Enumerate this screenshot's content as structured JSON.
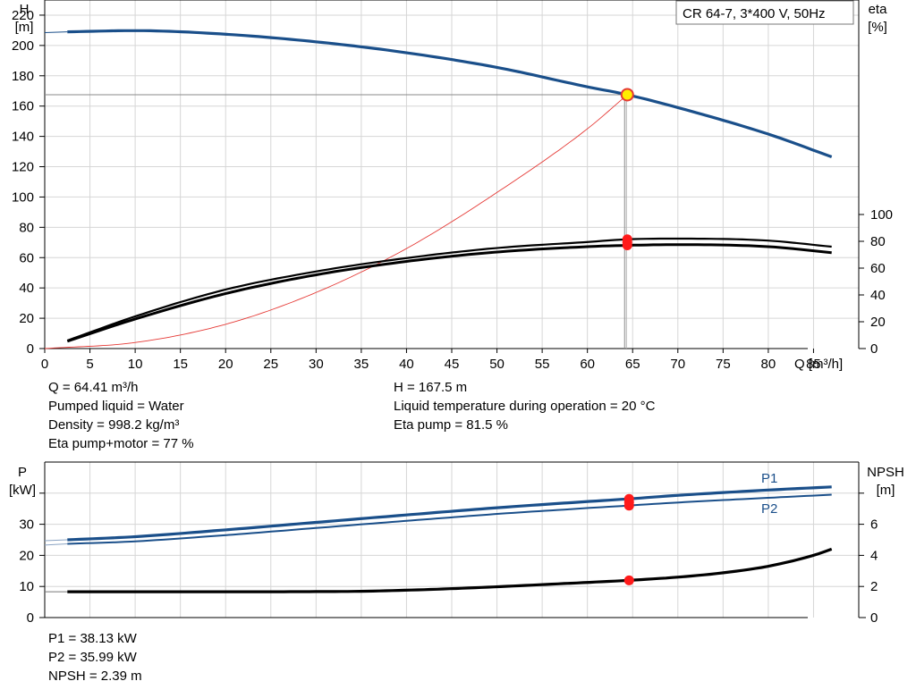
{
  "chart_data": [
    {
      "type": "line",
      "title": "CR 64-7, 3*400 V, 50Hz",
      "xlabel": "Q [m³/h]",
      "ylabel": "H",
      "ylabel_unit": "[m]",
      "y2label": "eta",
      "y2label_unit": "[%]",
      "xlim": [
        0,
        90
      ],
      "ylim": [
        0,
        230
      ],
      "y2lim": [
        0,
        100
      ],
      "x_ticks": [
        0,
        5,
        10,
        15,
        20,
        25,
        30,
        35,
        40,
        45,
        50,
        55,
        60,
        65,
        70,
        75,
        80,
        85
      ],
      "y_ticks": [
        0,
        20,
        40,
        60,
        80,
        100,
        120,
        140,
        160,
        180,
        200,
        220
      ],
      "y2_ticks": [
        0,
        20,
        40,
        60,
        80,
        100
      ],
      "grid": true,
      "series": [
        {
          "color": "#1a4f8a",
          "axis": "left",
          "x": [
            0,
            2.5,
            10,
            20,
            30,
            40,
            50,
            60,
            64.41,
            70,
            80,
            87
          ],
          "values": [
            208.5,
            209,
            209.8,
            207.4,
            202.4,
            195.2,
            185.5,
            172.7,
            167.5,
            159,
            141.5,
            126.5
          ]
        },
        {
          "color": "#000000",
          "axis": "right",
          "x": [
            2.5,
            10,
            20,
            30,
            40,
            50,
            60,
            64.41,
            70,
            80,
            87
          ],
          "values": [
            6,
            24,
            44,
            57.5,
            67.5,
            75,
            79.5,
            81.5,
            82,
            80.5,
            76
          ]
        },
        {
          "color": "#000000",
          "axis": "right",
          "x": [
            2.5,
            10,
            20,
            30,
            40,
            50,
            60,
            64.41,
            70,
            80,
            87
          ],
          "values": [
            5.5,
            22,
            41,
            55,
            65,
            72,
            76,
            77,
            77.5,
            76,
            71.5
          ]
        },
        {
          "color": "#e53935",
          "axis": "left",
          "x": [
            0,
            10,
            20,
            30,
            40,
            50,
            60,
            64.41
          ],
          "values": [
            0,
            4,
            16,
            37,
            66,
            103,
            145,
            167.5
          ]
        }
      ],
      "duty_point": {
        "q": 64.41,
        "h": 167.5,
        "eta_pump": 81.5,
        "eta_total": 77
      },
      "info_left": [
        "Q = 64.41 m³/h",
        "Pumped liquid = Water",
        "Density = 998.2 kg/m³",
        "Eta pump+motor = 77 %"
      ],
      "info_right": [
        "H = 167.5 m",
        "Liquid temperature during operation = 20 °C",
        "Eta pump = 81.5 %"
      ]
    },
    {
      "type": "line",
      "ylabel": "P",
      "ylabel_unit": "[kW]",
      "y2label": "NPSH",
      "y2label_unit": "[m]",
      "xlim": [
        0,
        90
      ],
      "ylim": [
        0,
        50
      ],
      "y2lim": [
        0,
        10
      ],
      "y_ticks": [
        0,
        10,
        20,
        30
      ],
      "y2_ticks": [
        0,
        2,
        4,
        6
      ],
      "grid": true,
      "series": [
        {
          "name": "P1",
          "color": "#1a4f8a",
          "axis": "left",
          "x": [
            0,
            2.5,
            10,
            20,
            30,
            40,
            50,
            60,
            64.41,
            70,
            80,
            87
          ],
          "values": [
            24.7,
            25,
            26,
            28.2,
            30.6,
            33,
            35.3,
            37.3,
            38.13,
            39.3,
            41,
            42
          ]
        },
        {
          "name": "P2",
          "color": "#1a4f8a",
          "axis": "left",
          "x": [
            0,
            2.5,
            10,
            20,
            30,
            40,
            50,
            60,
            64.41,
            70,
            80,
            87
          ],
          "values": [
            23.3,
            23.7,
            24.5,
            26.5,
            28.8,
            31.1,
            33.3,
            35.2,
            35.99,
            37,
            38.5,
            39.5
          ]
        },
        {
          "color": "#000000",
          "axis": "right",
          "x": [
            0,
            2.5,
            10,
            20,
            30,
            35,
            40,
            45,
            50,
            55,
            60,
            64.41,
            70,
            75,
            80,
            85,
            87
          ],
          "values": [
            1.66,
            1.66,
            1.66,
            1.66,
            1.67,
            1.69,
            1.76,
            1.86,
            1.98,
            2.12,
            2.26,
            2.39,
            2.6,
            2.88,
            3.3,
            4.0,
            4.4
          ]
        }
      ],
      "duty_point": {
        "p1": 38.13,
        "p2": 35.99,
        "npsh": 2.39
      },
      "info_left": [
        "P1 = 38.13 kW",
        "P2 = 35.99 kW",
        "NPSH = 2.39 m"
      ]
    }
  ]
}
